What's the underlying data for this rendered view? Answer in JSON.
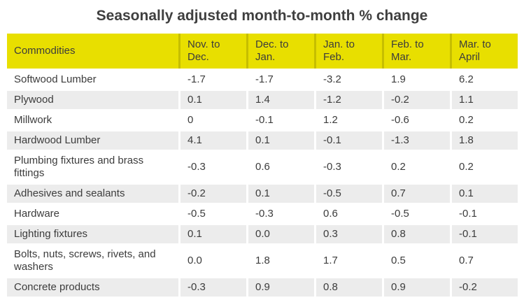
{
  "title": "Seasonally adjusted month-to-month % change",
  "colors": {
    "header_bg": "#e8df00",
    "header_divider": "#c6be00",
    "alt_row_bg": "#ececec",
    "text": "#3c3c3c",
    "title_text": "#3f3f3f"
  },
  "chart_data": {
    "type": "table",
    "title": "Seasonally adjusted month-to-month % change",
    "columns": [
      "Commodities",
      "Nov. to Dec.",
      "Dec. to Jan.",
      "Jan. to Feb.",
      "Feb. to Mar.",
      "Mar. to April"
    ],
    "rows": [
      {
        "label": "Softwood Lumber",
        "values": [
          "-1.7",
          "-1.7",
          "-3.2",
          "1.9",
          "6.2"
        ]
      },
      {
        "label": "Plywood",
        "values": [
          "0.1",
          "1.4",
          "-1.2",
          "-0.2",
          "1.1"
        ]
      },
      {
        "label": "Millwork",
        "values": [
          "0",
          "-0.1",
          "1.2",
          "-0.6",
          "0.2"
        ]
      },
      {
        "label": "Hardwood Lumber",
        "values": [
          "4.1",
          "0.1",
          "-0.1",
          "-1.3",
          "1.8"
        ]
      },
      {
        "label": "Plumbing fixtures and brass fittings",
        "values": [
          "-0.3",
          "0.6",
          "-0.3",
          "0.2",
          "0.2"
        ]
      },
      {
        "label": "Adhesives and sealants",
        "values": [
          "-0.2",
          "0.1",
          "-0.5",
          "0.7",
          "0.1"
        ]
      },
      {
        "label": "Hardware",
        "values": [
          "-0.5",
          "-0.3",
          "0.6",
          "-0.5",
          "-0.1"
        ]
      },
      {
        "label": "Lighting fixtures",
        "values": [
          "0.1",
          "0.0",
          "0.3",
          "0.8",
          "-0.1"
        ]
      },
      {
        "label": "Bolts, nuts, screws, rivets, and washers",
        "values": [
          "0.0",
          "1.8",
          "1.7",
          "0.5",
          "0.7"
        ]
      },
      {
        "label": "Concrete products",
        "values": [
          "-0.3",
          "0.9",
          "0.8",
          "0.9",
          "-0.2"
        ]
      }
    ]
  }
}
